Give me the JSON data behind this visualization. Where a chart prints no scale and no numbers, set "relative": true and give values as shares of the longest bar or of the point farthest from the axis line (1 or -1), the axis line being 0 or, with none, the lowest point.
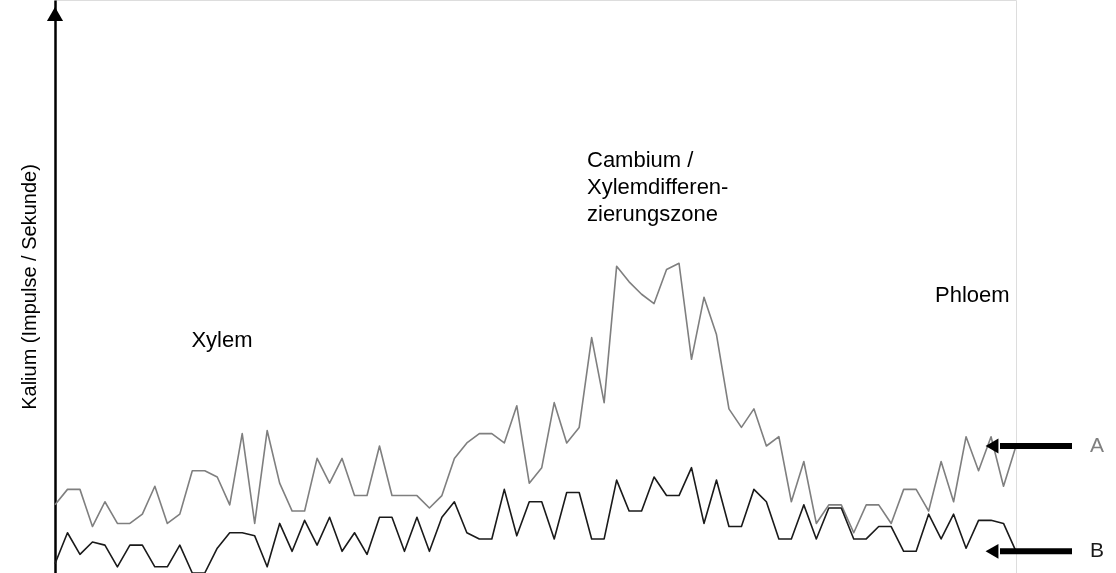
{
  "chart_data": {
    "type": "line",
    "relative": true,
    "ylabel": "Kalium (Impulse / Sekunde)",
    "categories": [
      null,
      null,
      null,
      null,
      null,
      null,
      null,
      null,
      null,
      null,
      null,
      null,
      null,
      null,
      null,
      null,
      null,
      null,
      null,
      null,
      null,
      null,
      null,
      null,
      null,
      null,
      null,
      null,
      null,
      null,
      null,
      null,
      null,
      null,
      null,
      null,
      null,
      null,
      null,
      null,
      null,
      null,
      null,
      null,
      null,
      null,
      null,
      null,
      null,
      null,
      null,
      null,
      null,
      null,
      null,
      null,
      null,
      null,
      null,
      null,
      null,
      null,
      null,
      null,
      null,
      null,
      null,
      null,
      null,
      null,
      null,
      null,
      null,
      null,
      null,
      null,
      null,
      null
    ],
    "annotations": [
      "Xylem",
      "Cambium /\nXylemdifferen-\nzierungszone",
      "Phloem"
    ],
    "series": [
      {
        "name": "A",
        "color": "#7f7f7f",
        "values": [
          0.22,
          0.27,
          0.27,
          0.15,
          0.23,
          0.16,
          0.16,
          0.19,
          0.28,
          0.16,
          0.19,
          0.33,
          0.33,
          0.31,
          0.22,
          0.45,
          0.16,
          0.46,
          0.29,
          0.2,
          0.2,
          0.37,
          0.29,
          0.37,
          0.25,
          0.25,
          0.41,
          0.25,
          0.25,
          0.25,
          0.21,
          0.25,
          0.37,
          0.42,
          0.45,
          0.45,
          0.42,
          0.54,
          0.29,
          0.34,
          0.55,
          0.42,
          0.47,
          0.76,
          0.55,
          0.99,
          0.94,
          0.9,
          0.87,
          0.98,
          1,
          0.69,
          0.89,
          0.77,
          0.53,
          0.47,
          0.53,
          0.41,
          0.44,
          0.23,
          0.36,
          0.16,
          0.22,
          0.22,
          0.13,
          0.22,
          0.22,
          0.16,
          0.27,
          0.27,
          0.2,
          0.36,
          0.23,
          0.44,
          0.33,
          0.44,
          0.28,
          0.41
        ]
      },
      {
        "name": "B",
        "color": "#1a1a1a",
        "values": [
          0.03,
          0.13,
          0.06,
          0.1,
          0.09,
          0.02,
          0.09,
          0.09,
          0.02,
          0.02,
          0.09,
          0,
          0,
          0.08,
          0.13,
          0.13,
          0.12,
          0.02,
          0.16,
          0.07,
          0.17,
          0.09,
          0.18,
          0.07,
          0.13,
          0.06,
          0.18,
          0.18,
          0.07,
          0.18,
          0.07,
          0.18,
          0.23,
          0.13,
          0.11,
          0.11,
          0.27,
          0.12,
          0.23,
          0.23,
          0.11,
          0.26,
          0.26,
          0.11,
          0.11,
          0.3,
          0.2,
          0.2,
          0.31,
          0.25,
          0.25,
          0.34,
          0.16,
          0.3,
          0.15,
          0.15,
          0.27,
          0.23,
          0.11,
          0.11,
          0.22,
          0.11,
          0.21,
          0.21,
          0.11,
          0.11,
          0.15,
          0.15,
          0.07,
          0.07,
          0.19,
          0.11,
          0.19,
          0.08,
          0.17,
          0.17,
          0.16,
          0.07
        ]
      }
    ]
  }
}
